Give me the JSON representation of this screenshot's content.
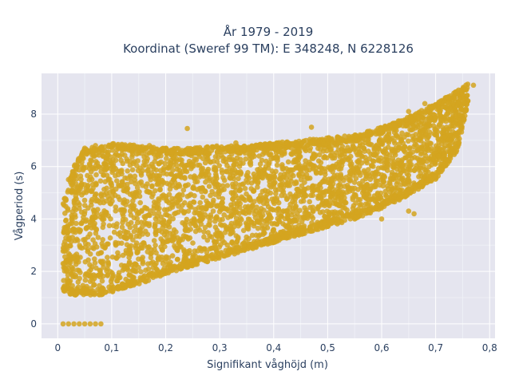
{
  "chart_data": {
    "type": "scatter",
    "title": "År 1979 - 2019",
    "subtitle": "Koordinat (Sweref 99 TM): E 348248, N 6228126",
    "xlabel": "Signifikant våghöjd (m)",
    "ylabel": "Vågperiod (s)",
    "xlim": [
      -0.03,
      0.81
    ],
    "ylim": [
      -0.55,
      9.55
    ],
    "x_ticks": [
      0,
      0.1,
      0.2,
      0.3,
      0.4,
      0.5,
      0.6,
      0.7,
      0.8
    ],
    "x_tick_labels": [
      "0",
      "0,1",
      "0,2",
      "0,3",
      "0,4",
      "0,5",
      "0,6",
      "0,7",
      "0,8"
    ],
    "y_ticks": [
      0,
      2,
      4,
      6,
      8
    ],
    "y_tick_labels": [
      "0",
      "2",
      "4",
      "6",
      "8"
    ],
    "grid": true,
    "legend": "none",
    "marker_color": "#d4a520",
    "plot_background": "#e5e5ef",
    "series": [
      {
        "envelope": {
          "x": [
            0.01,
            0.03,
            0.05,
            0.08,
            0.1,
            0.15,
            0.2,
            0.25,
            0.3,
            0.35,
            0.4,
            0.45,
            0.5,
            0.55,
            0.6,
            0.65,
            0.7,
            0.74,
            0.76
          ],
          "y_min": [
            1.2,
            1.1,
            1.1,
            1.1,
            1.2,
            1.5,
            1.9,
            2.2,
            2.5,
            2.8,
            3.1,
            3.4,
            3.7,
            4.0,
            4.4,
            4.9,
            5.5,
            6.6,
            8.4
          ],
          "y_max": [
            4.6,
            6.0,
            6.7,
            6.8,
            6.9,
            6.8,
            6.7,
            6.7,
            6.8,
            6.8,
            6.9,
            7.0,
            7.1,
            7.2,
            7.5,
            7.9,
            8.4,
            8.9,
            9.2
          ]
        },
        "zero_period_points": [
          {
            "x": 0.01,
            "y": 0
          },
          {
            "x": 0.02,
            "y": 0
          },
          {
            "x": 0.03,
            "y": 0
          },
          {
            "x": 0.04,
            "y": 0
          },
          {
            "x": 0.05,
            "y": 0
          },
          {
            "x": 0.06,
            "y": 0
          },
          {
            "x": 0.07,
            "y": 0
          },
          {
            "x": 0.08,
            "y": 0
          }
        ],
        "outliers": [
          {
            "x": 0.01,
            "y": 2.3
          },
          {
            "x": 0.02,
            "y": 5.5
          },
          {
            "x": 0.05,
            "y": 6.7
          },
          {
            "x": 0.07,
            "y": 6.8
          },
          {
            "x": 0.14,
            "y": 6.7
          },
          {
            "x": 0.17,
            "y": 6.8
          },
          {
            "x": 0.24,
            "y": 7.45
          },
          {
            "x": 0.33,
            "y": 6.9
          },
          {
            "x": 0.47,
            "y": 7.5
          },
          {
            "x": 0.61,
            "y": 7.0
          },
          {
            "x": 0.65,
            "y": 8.1
          },
          {
            "x": 0.68,
            "y": 8.4
          },
          {
            "x": 0.77,
            "y": 9.1
          },
          {
            "x": 0.65,
            "y": 4.3
          },
          {
            "x": 0.66,
            "y": 4.2
          },
          {
            "x": 0.6,
            "y": 4.0
          }
        ]
      }
    ]
  }
}
